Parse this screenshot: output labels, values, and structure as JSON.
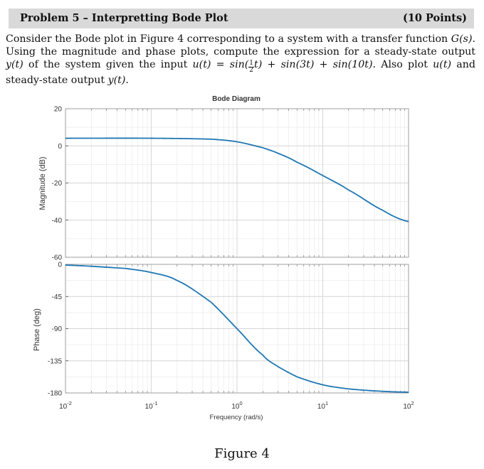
{
  "header": {
    "title": "Problem 5 – Interpretting Bode Plot",
    "points": "(10 Points)"
  },
  "problem": {
    "p1": "Consider the Bode plot in Figure 4 corresponding to a system with a transfer function ",
    "Gs": "G(s)",
    "p2": ". Using the magnitude and phase plots, compute the expression for a steady-state output ",
    "yt": "y(t)",
    "p3": " of the system given the input ",
    "u_lhs": "u(t) = sin(",
    "frac_num": "1",
    "frac_den": "2",
    "u_rhs": "t) + sin(3t) + sin(10t)",
    "p4": ". Also plot ",
    "ut2": "u(t)",
    "p5": " and steady-state output ",
    "yt2": "y(t)",
    "p6": "."
  },
  "figure_caption": "Figure 4",
  "chart_data": {
    "type": "line",
    "title": "Bode Diagram",
    "xlabel": "Frequency (rad/s)",
    "x_scale": "log",
    "xlim": [
      0.01,
      100
    ],
    "x_ticks": [
      {
        "value": 0.01,
        "base": "10",
        "exp": "-2"
      },
      {
        "value": 0.1,
        "base": "10",
        "exp": "-1"
      },
      {
        "value": 1,
        "base": "10",
        "exp": "0"
      },
      {
        "value": 10,
        "base": "10",
        "exp": "1"
      },
      {
        "value": 100,
        "base": "10",
        "exp": "2"
      }
    ],
    "grid": true,
    "line_color": "#1f77b4",
    "magnitude": {
      "ylabel": "Magnitude (dB)",
      "ylim": [
        -60,
        20
      ],
      "y_ticks": [
        "20",
        "0",
        "-20",
        "-40",
        "-60"
      ],
      "x": [
        0.01,
        0.1,
        0.5,
        1,
        2,
        3,
        5,
        10,
        20,
        50,
        100
      ],
      "y": [
        4.1,
        4.1,
        3.6,
        2.2,
        -1.0,
        -4.0,
        -8.8,
        -16.0,
        -23.8,
        -34.7,
        -40.8
      ]
    },
    "phase": {
      "ylabel": "Phase (deg)",
      "ylim": [
        -180,
        0
      ],
      "y_ticks": [
        "0",
        "-45",
        "-90",
        "-135",
        "-180"
      ],
      "x": [
        0.01,
        0.05,
        0.1,
        0.2,
        0.5,
        1,
        2,
        3,
        5,
        10,
        20,
        50,
        100
      ],
      "y": [
        -1.1,
        -5.7,
        -11.4,
        -22.6,
        -53.1,
        -90,
        -126.9,
        -143.1,
        -157.4,
        -168.6,
        -174.3,
        -177.7,
        -178.9
      ]
    }
  }
}
